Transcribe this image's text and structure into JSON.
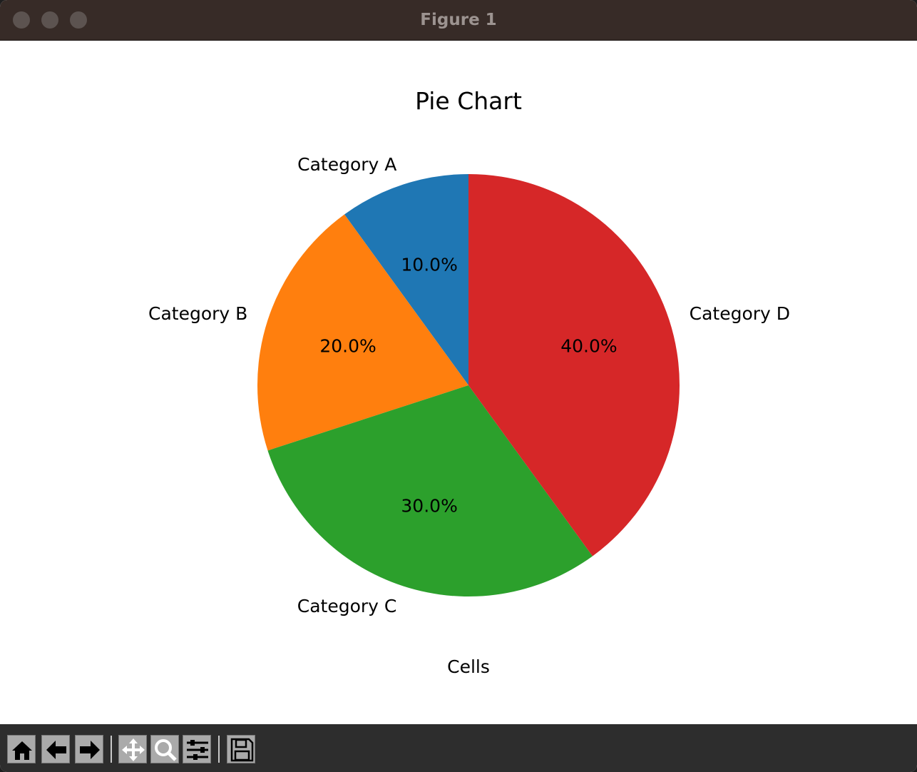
{
  "window": {
    "title": "Figure 1"
  },
  "chart_data": {
    "type": "pie",
    "title": "Pie Chart",
    "xlabel": "Cells",
    "categories": [
      "Category A",
      "Category B",
      "Category C",
      "Category D"
    ],
    "values": [
      10,
      20,
      30,
      40
    ],
    "autopct_labels": [
      "10.0%",
      "20.0%",
      "30.0%",
      "40.0%"
    ],
    "colors": [
      "#1f77b4",
      "#ff7f0e",
      "#2ca02c",
      "#d62728"
    ],
    "start_angle_deg": 90,
    "direction": "counterclockwise"
  },
  "toolbar": {
    "buttons": [
      {
        "name": "home-button",
        "icon": "home-icon"
      },
      {
        "name": "back-button",
        "icon": "arrow-left-icon"
      },
      {
        "name": "forward-button",
        "icon": "arrow-right-icon"
      },
      {
        "name": "pan-button",
        "icon": "move-icon"
      },
      {
        "name": "zoom-button",
        "icon": "magnifier-icon"
      },
      {
        "name": "configure-subplots-button",
        "icon": "sliders-icon"
      },
      {
        "name": "save-button",
        "icon": "floppy-disk-icon"
      }
    ]
  }
}
